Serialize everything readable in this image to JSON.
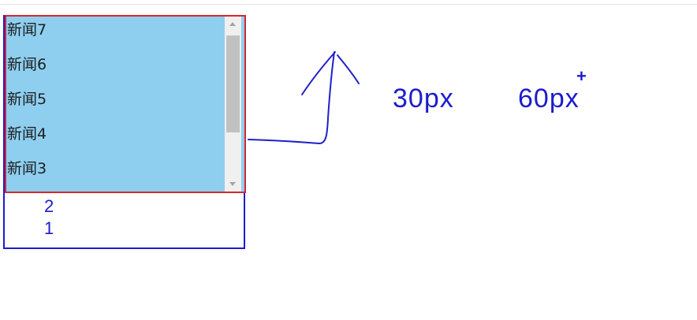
{
  "list": {
    "items": [
      "新闻7",
      "新闻6",
      "新闻5",
      "新闻4",
      "新闻3"
    ],
    "scrollbar": {
      "visible_fraction": 0.67,
      "position": 0.08
    }
  },
  "below_items": [
    "2",
    "1"
  ],
  "annotations": {
    "label_a": "30px",
    "label_b": "60px",
    "plus": "+"
  },
  "icons": {
    "scroll_up": "scroll-up-arrow-icon",
    "scroll_down": "scroll-down-arrow-icon",
    "annotation": "hand-drawn-up-arrow-icon"
  },
  "colors": {
    "annotation_blue": "#1c1ccc",
    "list_border_red": "#d9262b",
    "list_background": "#8ecff0",
    "scrollbar_track": "#f0f0f0",
    "scrollbar_thumb": "#c1c1c1"
  }
}
